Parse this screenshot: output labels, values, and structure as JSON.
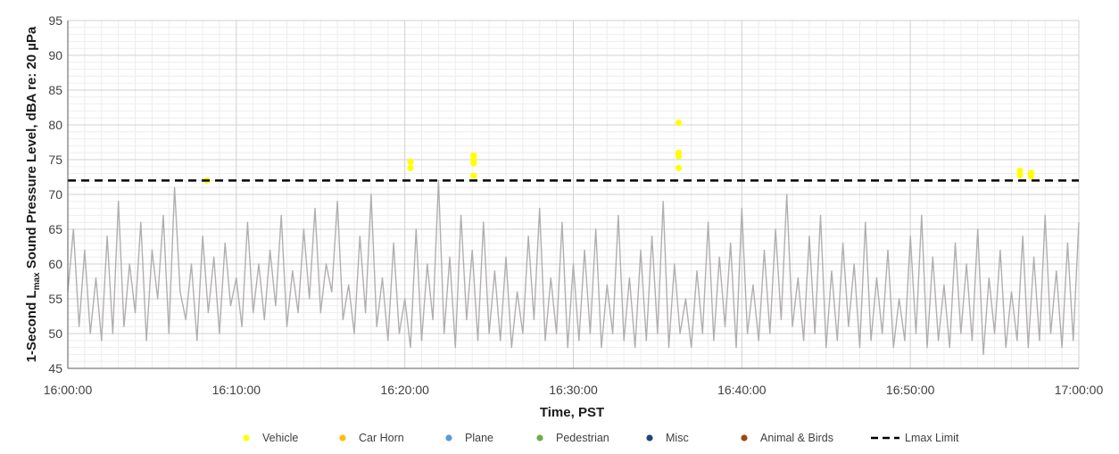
{
  "chart_data": {
    "type": "line",
    "title": "",
    "xlabel": "Time, PST",
    "ylabel_parts": [
      "1-Second L",
      "max",
      " Sound Pressure Level, dBA re: 20 µPa"
    ],
    "xlim": [
      "16:00:00",
      "17:00:00"
    ],
    "ylim": [
      45,
      95
    ],
    "x_ticks": [
      "16:00:00",
      "16:10:00",
      "16:20:00",
      "16:30:00",
      "16:40:00",
      "16:50:00",
      "17:00:00"
    ],
    "y_ticks": [
      45,
      50,
      55,
      60,
      65,
      70,
      75,
      80,
      85,
      90,
      95
    ],
    "grid": true,
    "legend_position": "bottom",
    "series": [
      {
        "name": "",
        "kind": "line",
        "color": "#b2aeae",
        "x": [
          "16:00:00",
          "16:00:20",
          "16:00:40",
          "16:01:00",
          "16:01:20",
          "16:01:40",
          "16:02:00",
          "16:02:20",
          "16:02:40",
          "16:03:00",
          "16:03:20",
          "16:03:40",
          "16:04:00",
          "16:04:20",
          "16:04:40",
          "16:05:00",
          "16:05:20",
          "16:05:40",
          "16:06:00",
          "16:06:20",
          "16:06:40",
          "16:07:00",
          "16:07:20",
          "16:07:40",
          "16:08:00",
          "16:08:20",
          "16:08:40",
          "16:09:00",
          "16:09:20",
          "16:09:40",
          "16:10:00",
          "16:10:20",
          "16:10:40",
          "16:11:00",
          "16:11:20",
          "16:11:40",
          "16:12:00",
          "16:12:20",
          "16:12:40",
          "16:13:00",
          "16:13:20",
          "16:13:40",
          "16:14:00",
          "16:14:20",
          "16:14:40",
          "16:15:00",
          "16:15:20",
          "16:15:40",
          "16:16:00",
          "16:16:20",
          "16:16:40",
          "16:17:00",
          "16:17:20",
          "16:17:40",
          "16:18:00",
          "16:18:20",
          "16:18:40",
          "16:19:00",
          "16:19:20",
          "16:19:40",
          "16:20:00",
          "16:20:20",
          "16:20:40",
          "16:21:00",
          "16:21:20",
          "16:21:40",
          "16:22:00",
          "16:22:20",
          "16:22:40",
          "16:23:00",
          "16:23:20",
          "16:23:40",
          "16:24:00",
          "16:24:20",
          "16:24:40",
          "16:25:00",
          "16:25:20",
          "16:25:40",
          "16:26:00",
          "16:26:20",
          "16:26:40",
          "16:27:00",
          "16:27:20",
          "16:27:40",
          "16:28:00",
          "16:28:20",
          "16:28:40",
          "16:29:00",
          "16:29:20",
          "16:29:40",
          "16:30:00",
          "16:30:20",
          "16:30:40",
          "16:31:00",
          "16:31:20",
          "16:31:40",
          "16:32:00",
          "16:32:20",
          "16:32:40",
          "16:33:00",
          "16:33:20",
          "16:33:40",
          "16:34:00",
          "16:34:20",
          "16:34:40",
          "16:35:00",
          "16:35:20",
          "16:35:40",
          "16:36:00",
          "16:36:20",
          "16:36:40",
          "16:37:00",
          "16:37:20",
          "16:37:40",
          "16:38:00",
          "16:38:20",
          "16:38:40",
          "16:39:00",
          "16:39:20",
          "16:39:40",
          "16:40:00",
          "16:40:20",
          "16:40:40",
          "16:41:00",
          "16:41:20",
          "16:41:40",
          "16:42:00",
          "16:42:20",
          "16:42:40",
          "16:43:00",
          "16:43:20",
          "16:43:40",
          "16:44:00",
          "16:44:20",
          "16:44:40",
          "16:45:00",
          "16:45:20",
          "16:45:40",
          "16:46:00",
          "16:46:20",
          "16:46:40",
          "16:47:00",
          "16:47:20",
          "16:47:40",
          "16:48:00",
          "16:48:20",
          "16:48:40",
          "16:49:00",
          "16:49:20",
          "16:49:40",
          "16:50:00",
          "16:50:20",
          "16:50:40",
          "16:51:00",
          "16:51:20",
          "16:51:40",
          "16:52:00",
          "16:52:20",
          "16:52:40",
          "16:53:00",
          "16:53:20",
          "16:53:40",
          "16:54:00",
          "16:54:20",
          "16:54:40",
          "16:55:00",
          "16:55:20",
          "16:55:40",
          "16:56:00",
          "16:56:20",
          "16:56:40",
          "16:57:00",
          "16:57:20",
          "16:57:40",
          "16:58:00",
          "16:58:20",
          "16:58:40",
          "16:59:00",
          "16:59:20",
          "16:59:40",
          "17:00:00"
        ],
        "y": [
          56,
          65,
          51,
          62,
          50,
          58,
          49,
          64,
          50,
          69,
          51,
          60,
          53,
          66,
          49,
          62,
          55,
          67,
          50,
          71,
          56,
          52,
          60,
          49,
          64,
          53,
          61,
          50,
          63,
          54,
          58,
          51,
          66,
          53,
          60,
          52,
          62,
          54,
          67,
          51,
          59,
          53,
          65,
          55,
          68,
          53,
          60,
          56,
          69,
          52,
          57,
          50,
          64,
          53,
          70,
          51,
          58,
          49,
          63,
          50,
          55,
          48,
          65,
          49,
          60,
          52,
          72,
          50,
          61,
          48,
          67,
          52,
          62,
          49,
          66,
          50,
          59,
          49,
          61,
          48,
          56,
          50,
          64,
          52,
          68,
          49,
          58,
          50,
          66,
          48,
          60,
          49,
          62,
          50,
          65,
          48,
          57,
          50,
          67,
          49,
          58,
          48,
          62,
          49,
          64,
          50,
          69,
          48,
          60,
          50,
          55,
          48,
          59,
          50,
          66,
          49,
          61,
          51,
          63,
          48,
          68,
          50,
          57,
          49,
          62,
          50,
          65,
          52,
          70,
          51,
          58,
          49,
          64,
          50,
          67,
          48,
          59,
          49,
          63,
          51,
          60,
          48,
          66,
          49,
          58,
          50,
          62,
          48,
          55,
          49,
          64,
          50,
          67,
          48,
          61,
          49,
          57,
          48,
          63,
          50,
          60,
          49,
          65,
          47,
          58,
          50,
          62,
          48,
          56,
          49,
          64,
          48,
          61,
          49,
          67,
          50,
          59,
          48,
          63,
          49,
          66
        ]
      },
      {
        "name": "Vehicle",
        "kind": "scatter",
        "color": "#ffff00",
        "x": [
          "16:08:15",
          "16:20:20",
          "16:20:20",
          "16:24:05",
          "16:24:05",
          "16:24:05",
          "16:24:05",
          "16:36:15",
          "16:36:15",
          "16:36:15",
          "16:36:15",
          "16:56:30",
          "16:56:30",
          "16:57:10",
          "16:57:10"
        ],
        "y": [
          72.0,
          74.7,
          73.8,
          75.6,
          75.0,
          74.5,
          72.7,
          80.3,
          76.0,
          75.5,
          73.8,
          73.4,
          72.8,
          73.1,
          72.6
        ]
      },
      {
        "name": "Car Horn",
        "kind": "scatter",
        "color": "#ffc000",
        "x": [],
        "y": []
      },
      {
        "name": "Plane",
        "kind": "scatter",
        "color": "#5b9bd5",
        "x": [],
        "y": []
      },
      {
        "name": "Pedestrian",
        "kind": "scatter",
        "color": "#70ad47",
        "x": [],
        "y": []
      },
      {
        "name": "Misc",
        "kind": "scatter",
        "color": "#264478",
        "x": [],
        "y": []
      },
      {
        "name": "Animal & Birds",
        "kind": "scatter",
        "color": "#9e480e",
        "x": [],
        "y": []
      },
      {
        "name": "Lmax Limit",
        "kind": "hline",
        "color": "#000000",
        "y": 72
      }
    ]
  }
}
